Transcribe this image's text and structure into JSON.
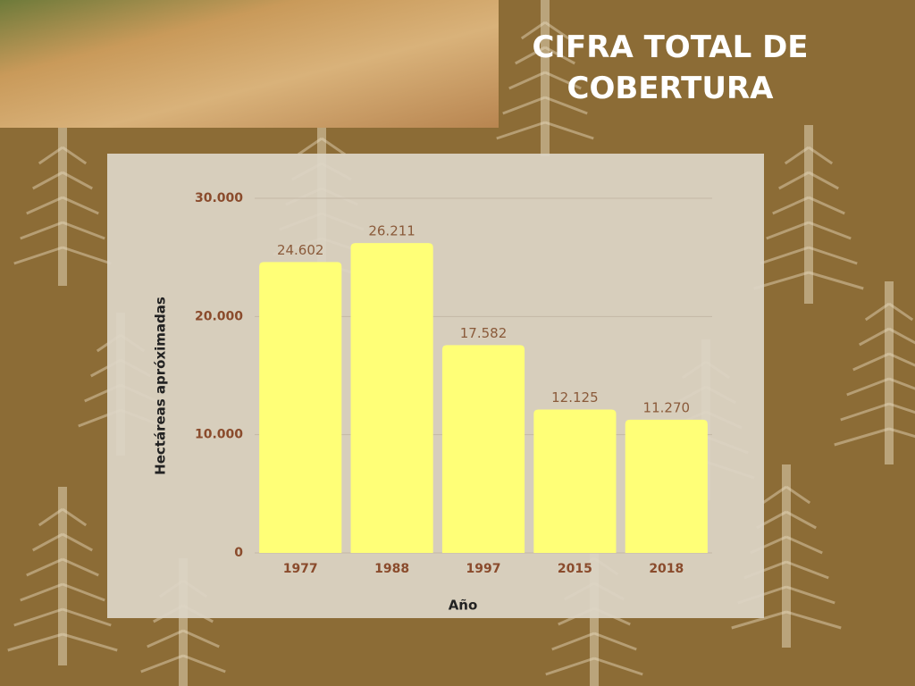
{
  "chart_data": {
    "type": "bar",
    "title": "CIFRA TOTAL DE COBERTURA",
    "y_label": "Hectáreas apróximadas",
    "x_label": "Año",
    "categories": [
      "1977",
      "1988",
      "1997",
      "2015",
      "2018"
    ],
    "values": [
      24602,
      26211,
      17582,
      12125,
      11270
    ],
    "value_labels": [
      "24.602",
      "26.211",
      "17.582",
      "12.125",
      "11.270"
    ],
    "color": "#ffff77",
    "ylim": [
      0,
      30000
    ],
    "yticks": [
      0,
      {
        "value": 10000,
        "label": "10.000"
      },
      {
        "value": 20000,
        "label": "20.000"
      },
      {
        "value": 30000,
        "label": "30.000"
      }
    ],
    "grid": true
  }
}
